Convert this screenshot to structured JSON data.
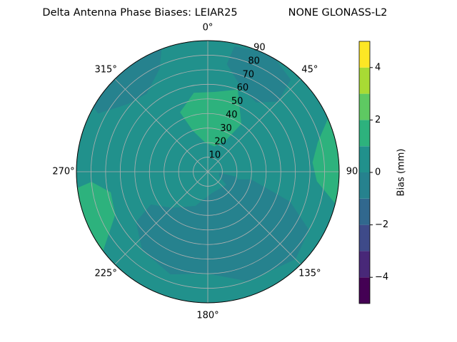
{
  "chart_data": {
    "type": "polar-contour",
    "title": "Delta Antenna Phase Biases: LEIAR25",
    "subtitle": "NONE GLONASS-L2",
    "colorbar_label": "Bias (mm)",
    "levels": [
      -5,
      -4,
      -3,
      -2,
      -1,
      0,
      1,
      2,
      3,
      4,
      5
    ],
    "colors": [
      "#440154",
      "#482878",
      "#3e4a89",
      "#31688e",
      "#26828e",
      "#21918c",
      "#2db27d",
      "#5ec962",
      "#a8db34",
      "#fde725"
    ],
    "colorbar_ticks": [
      -4,
      -2,
      0,
      2,
      4
    ],
    "rlim": [
      0,
      90
    ],
    "rticks": [
      10,
      20,
      30,
      40,
      50,
      60,
      70,
      80,
      90
    ],
    "thetaticks": [
      {
        "value": 0,
        "label": "0°"
      },
      {
        "value": 45,
        "label": "45°"
      },
      {
        "value": 90,
        "label": "90"
      },
      {
        "value": 135,
        "label": "135°"
      },
      {
        "value": 180,
        "label": "180°"
      },
      {
        "value": 225,
        "label": "225°"
      },
      {
        "value": 270,
        "label": "270°"
      },
      {
        "value": 315,
        "label": "315°"
      }
    ],
    "base_value": 0,
    "regions": [
      {
        "value": -1,
        "azimuth": [
          100,
          110,
          120,
          135,
          160,
          180,
          200,
          220,
          235,
          240,
          225,
          200,
          170,
          130,
          105
        ],
        "zenith": [
          30,
          60,
          80,
          85,
          80,
          70,
          75,
          70,
          60,
          45,
          35,
          25,
          15,
          15,
          20
        ]
      },
      {
        "value": -1,
        "azimuth": [
          298,
          310,
          322,
          335,
          340,
          320,
          300
        ],
        "zenith": [
          85,
          72,
          68,
          78,
          92,
          95,
          92
        ]
      },
      {
        "value": -1,
        "azimuth": [
          10,
          22,
          35,
          45,
          42,
          28,
          12
        ],
        "zenith": [
          75,
          62,
          58,
          68,
          85,
          92,
          88
        ]
      },
      {
        "value": -1,
        "azimuth": [
          95,
          110,
          125,
          118,
          100
        ],
        "zenith": [
          8,
          8,
          15,
          25,
          20
        ]
      },
      {
        "value": 1,
        "azimuth": [
          335,
          350,
          5,
          20,
          35,
          30,
          15,
          355,
          340
        ],
        "zenith": [
          45,
          55,
          55,
          60,
          40,
          25,
          18,
          20,
          30
        ]
      },
      {
        "value": 1,
        "azimuth": [
          232,
          245,
          258,
          265,
          262,
          240,
          228
        ],
        "zenith": [
          92,
          70,
          68,
          80,
          95,
          95,
          92
        ]
      },
      {
        "value": 1,
        "azimuth": [
          65,
          75,
          85,
          95,
          105,
          100,
          70
        ],
        "zenith": [
          92,
          78,
          72,
          75,
          92,
          96,
          96
        ]
      }
    ]
  }
}
